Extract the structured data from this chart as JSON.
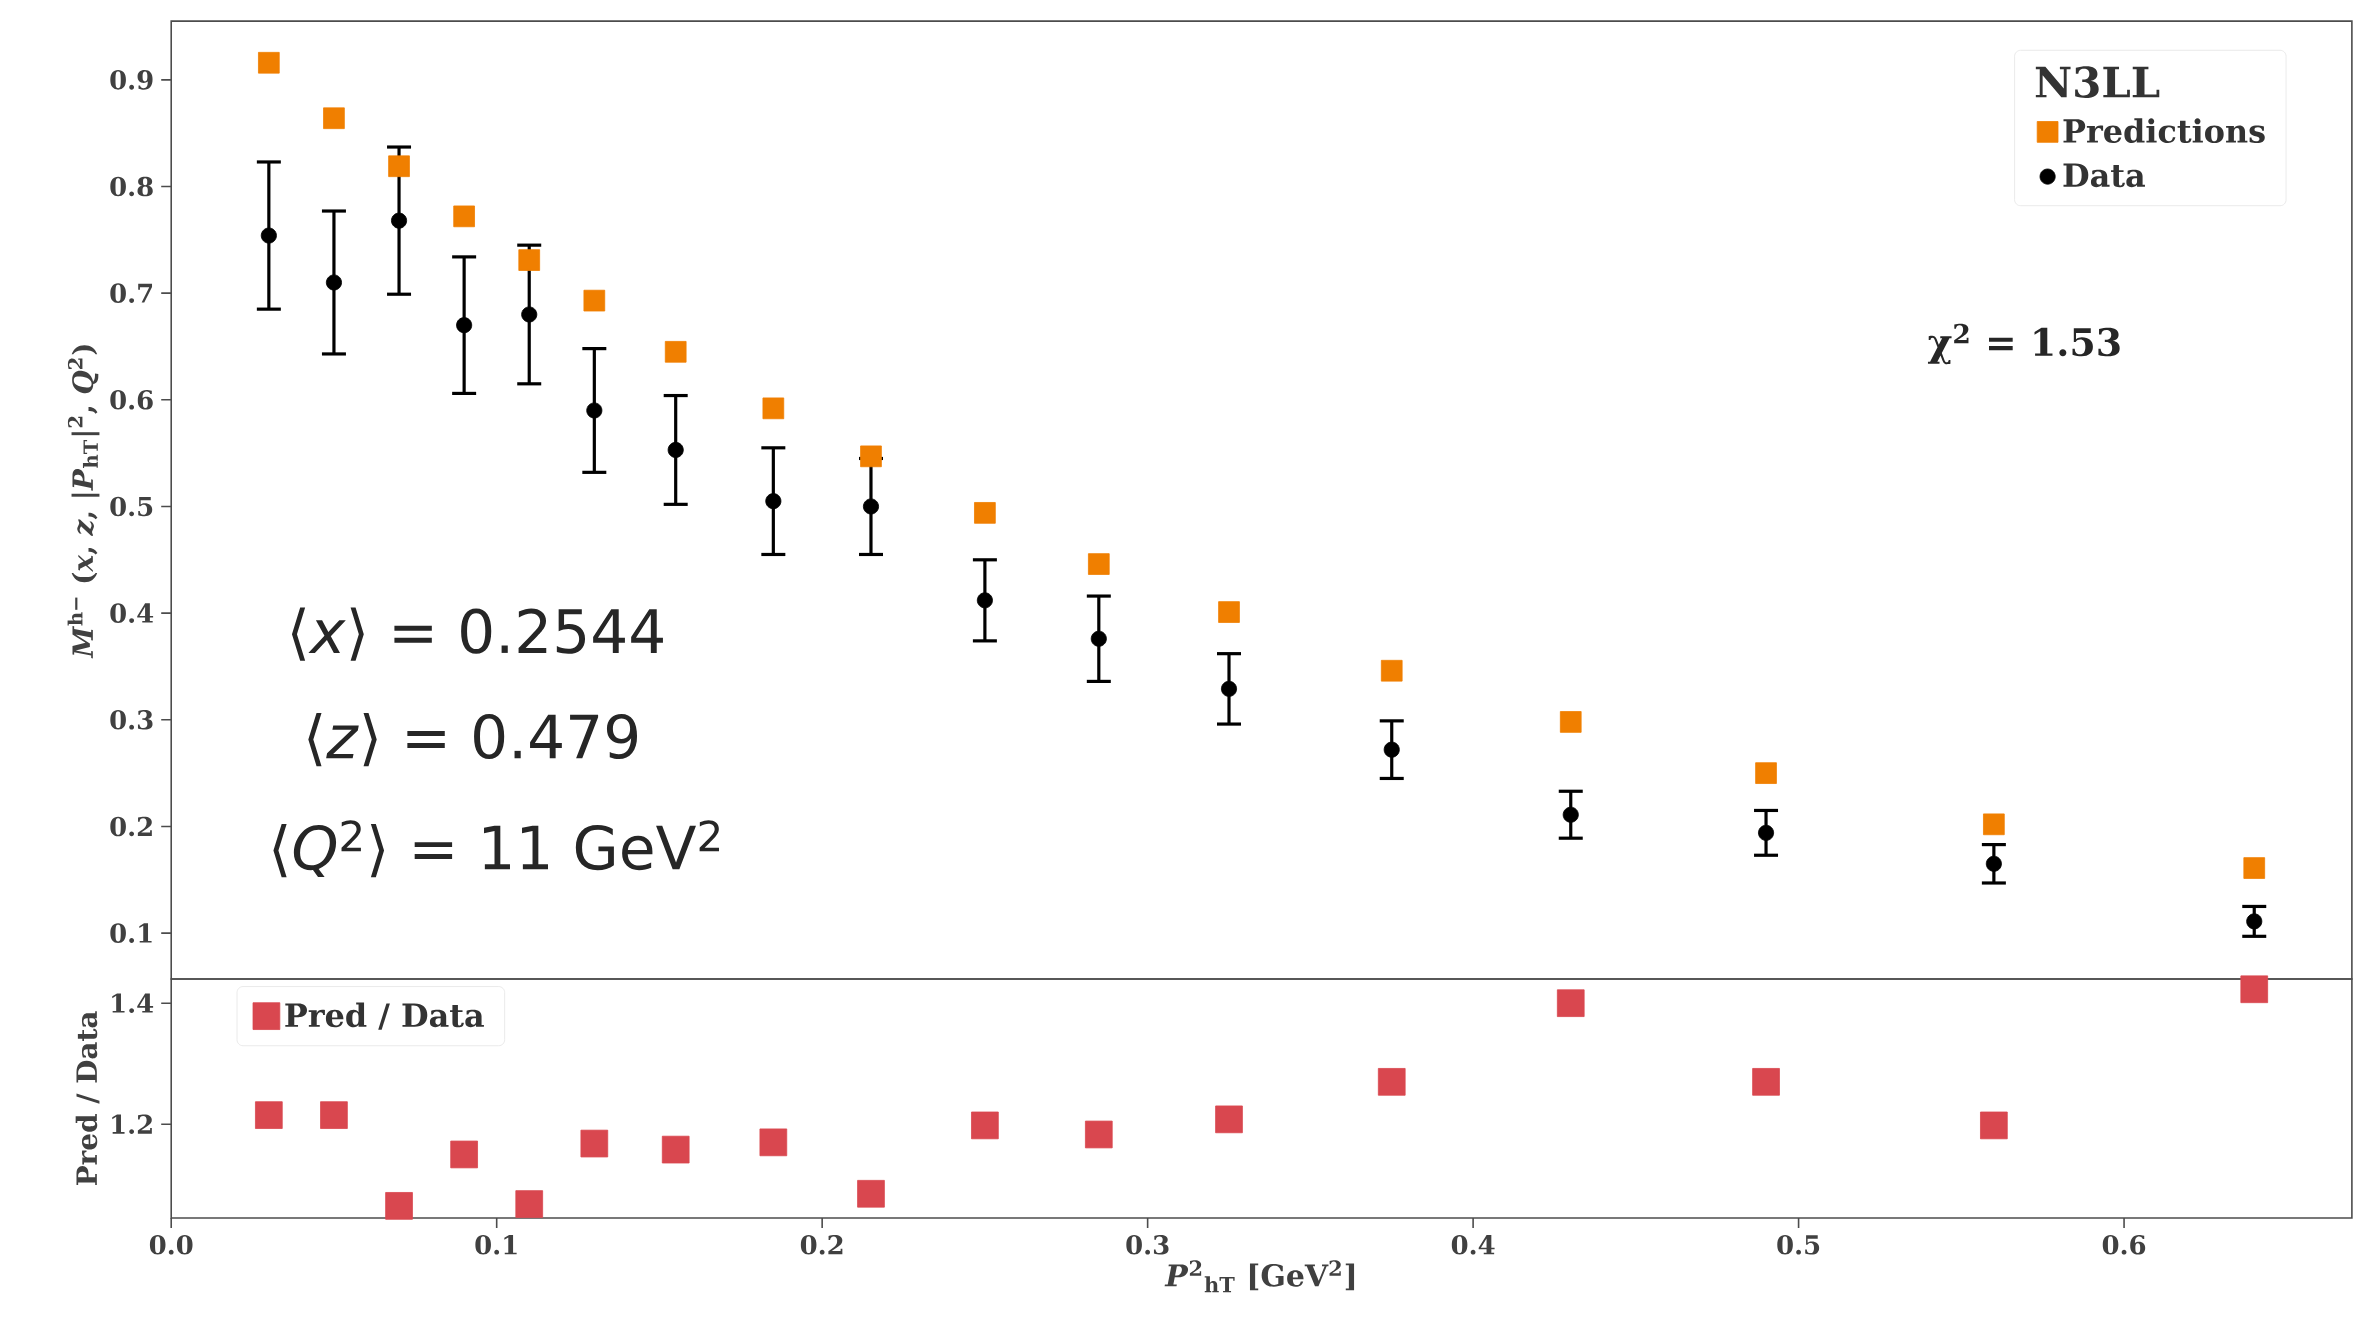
{
  "chart_data": [
    {
      "type": "scatter",
      "ylabel": "*M*$^{h−}$ (*x*, *z*, |*P*$_{hT}$|$^{2}$, *Q*$^{2}$)",
      "legend_title": "N3LL",
      "legend": "top right",
      "tick_labels": "y",
      "grid": false,
      "x": [
        0.03,
        0.05,
        0.07,
        0.09,
        0.11,
        0.13,
        0.155,
        0.185,
        0.215,
        0.25,
        0.285,
        0.325,
        0.375,
        0.43,
        0.49,
        0.56,
        0.64
      ],
      "series": [
        {
          "name": "Predictions",
          "color": "#f07f00",
          "marker": "square",
          "values": [
            0.916,
            0.864,
            0.819,
            0.772,
            0.731,
            0.693,
            0.645,
            0.592,
            0.547,
            0.494,
            0.446,
            0.401,
            0.346,
            0.298,
            0.25,
            0.202,
            0.161
          ]
        },
        {
          "name": "Data",
          "color": "#000000",
          "marker": "circle",
          "values": [
            0.754,
            0.71,
            0.768,
            0.67,
            0.68,
            0.59,
            0.553,
            0.505,
            0.5,
            0.412,
            0.376,
            0.329,
            0.272,
            0.211,
            0.194,
            0.165,
            0.111
          ],
          "errors": [
            0.069,
            0.067,
            0.069,
            0.064,
            0.065,
            0.058,
            0.051,
            0.05,
            0.045,
            0.038,
            0.04,
            0.033,
            0.027,
            0.022,
            0.021,
            0.018,
            0.014
          ]
        }
      ],
      "xlim": [
        0,
        0.67
      ],
      "ylim": [
        0.057,
        0.955
      ],
      "yticks": [
        0.1,
        0.2,
        0.3,
        0.4,
        0.5,
        0.6,
        0.7,
        0.8,
        0.9
      ],
      "annotations": [
        "χ$^{2}$ = 1.53",
        "⟨*x*⟩ = 0.2544",
        "⟨*z*⟩ = 0.479",
        "⟨*Q*$^{2}$⟩ = 11 GeV$^{2}$"
      ]
    },
    {
      "type": "scatter",
      "xlabel": "*P*$^{2}$$_{hT}$ [GeV$^{2}$]",
      "ylabel": "Pred / Data",
      "legend": "top left",
      "grid": false,
      "x": [
        0.03,
        0.05,
        0.07,
        0.09,
        0.11,
        0.13,
        0.155,
        0.185,
        0.215,
        0.25,
        0.285,
        0.325,
        0.375,
        0.43,
        0.49,
        0.56,
        0.64
      ],
      "series": [
        {
          "name": "Pred / Data",
          "color": "#d9474f",
          "marker": "square",
          "values": [
            1.215,
            1.215,
            1.065,
            1.15,
            1.068,
            1.168,
            1.158,
            1.17,
            1.085,
            1.198,
            1.183,
            1.208,
            1.27,
            1.4,
            1.27,
            1.198,
            1.423
          ]
        }
      ],
      "xlim": [
        0,
        0.67
      ],
      "xticks": [
        {
          "value": 0,
          "label": "0.0"
        },
        {
          "value": 0.1,
          "label": "0.1"
        },
        {
          "value": 0.2,
          "label": "0.2"
        },
        {
          "value": 0.3,
          "label": "0.3"
        },
        {
          "value": 0.4,
          "label": "0.4"
        },
        {
          "value": 0.5,
          "label": "0.5"
        },
        {
          "value": 0.6,
          "label": "0.6"
        }
      ],
      "ylim": [
        1.045,
        1.44
      ],
      "yticks": [
        1.2,
        1.4
      ]
    }
  ]
}
